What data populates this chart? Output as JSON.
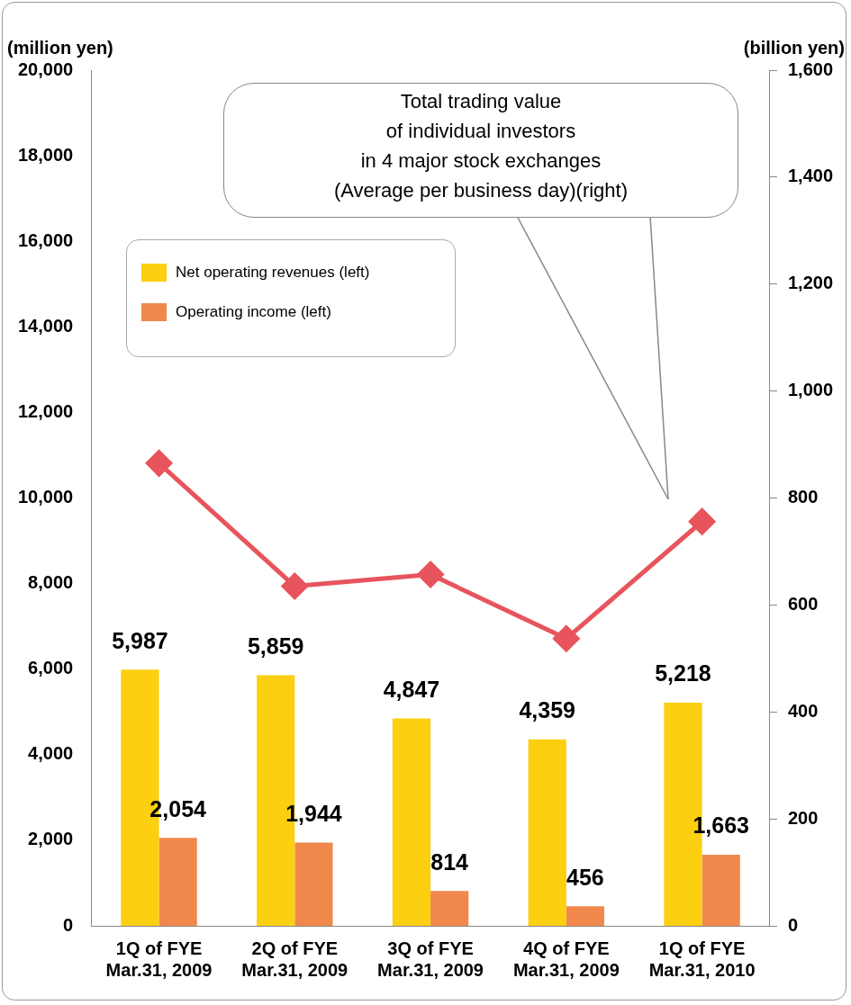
{
  "chart_data": {
    "type": "bar",
    "ylabel": "(million yen)",
    "y2label": "(billion yen)",
    "categories": [
      "1Q of FYE\nMar.31, 2009",
      "2Q of FYE\nMar.31, 2009",
      "3Q of FYE\nMar.31, 2009",
      "4Q of FYE\nMar.31, 2009",
      "1Q of FYE\nMar.31, 2010"
    ],
    "series": [
      {
        "name": "Net operating revenues (left)",
        "color": "#fccf10",
        "values": [
          5987,
          5859,
          4847,
          4359,
          5218
        ],
        "value_labels": [
          "5,987",
          "5,859",
          "4,847",
          "4,359",
          "5,218"
        ]
      },
      {
        "name": "Operating income (left)",
        "color": "#f0884c",
        "values": [
          2054,
          1944,
          814,
          456,
          1663
        ],
        "value_labels": [
          "2,054",
          "1,944",
          "814",
          "456",
          "1,663"
        ]
      },
      {
        "type": "line",
        "axis": "y2",
        "color": "#e8545c",
        "marker": "diamond",
        "values": [
          865,
          635,
          657,
          537,
          756
        ]
      }
    ],
    "ylim": [
      0,
      20000
    ],
    "yticks": [
      {
        "value": 0,
        "label": "0"
      },
      {
        "value": 2000,
        "label": "2,000"
      },
      {
        "value": 4000,
        "label": "4,000"
      },
      {
        "value": 6000,
        "label": "6,000"
      },
      {
        "value": 8000,
        "label": "8,000"
      },
      {
        "value": 10000,
        "label": "10,000"
      },
      {
        "value": 12000,
        "label": "12,000"
      },
      {
        "value": 14000,
        "label": "14,000"
      },
      {
        "value": 16000,
        "label": "16,000"
      },
      {
        "value": 18000,
        "label": "18,000"
      },
      {
        "value": 20000,
        "label": "20,000"
      }
    ],
    "y2lim": [
      0,
      1600
    ],
    "y2ticks": [
      {
        "value": 0,
        "label": "0"
      },
      {
        "value": 200,
        "label": "200"
      },
      {
        "value": 400,
        "label": "400"
      },
      {
        "value": 600,
        "label": "600"
      },
      {
        "value": 800,
        "label": "800"
      },
      {
        "value": 1000,
        "label": "1,000"
      },
      {
        "value": 1200,
        "label": "1,200"
      },
      {
        "value": 1400,
        "label": "1,400"
      },
      {
        "value": 1600,
        "label": "1,600"
      }
    ],
    "grid": false,
    "legend": "top left",
    "annotations": [
      "Total trading value\nof individual investors\nin 4 major stock exchanges\n(Average per business day)(right)"
    ]
  }
}
